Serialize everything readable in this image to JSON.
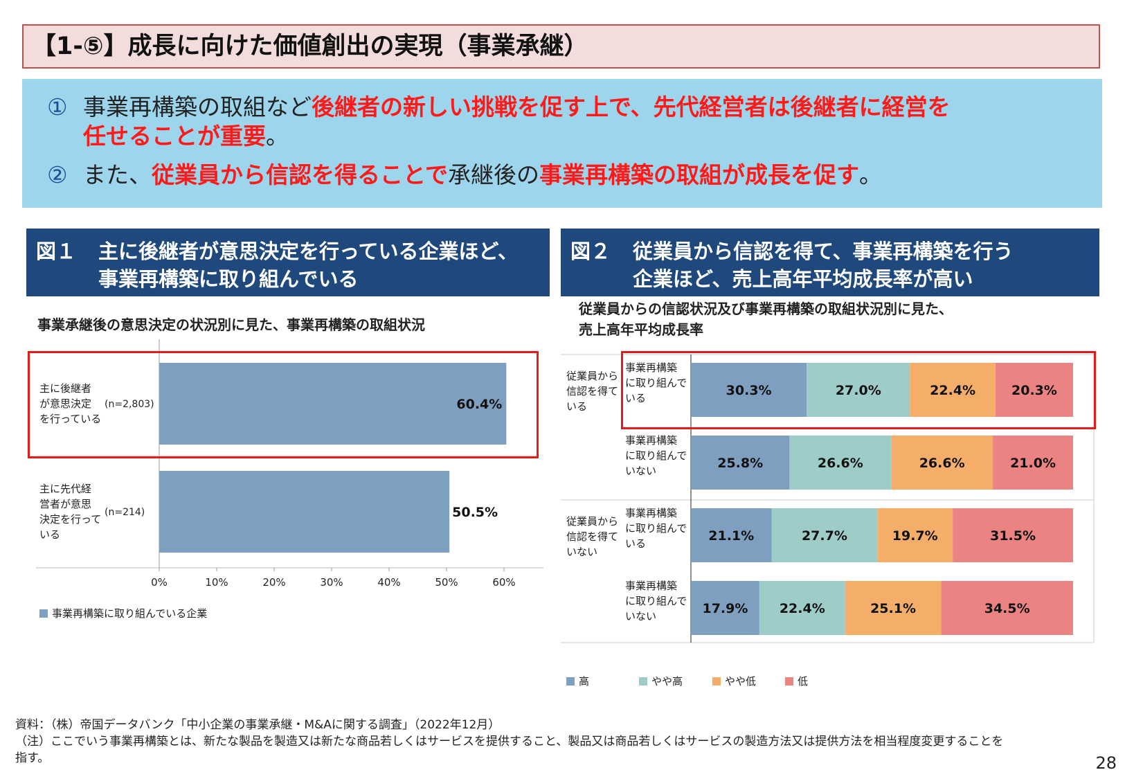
{
  "title": "【1-⑤】成長に向けた価値創出の実現（事業承継）",
  "summary": {
    "p1": {
      "num": "①",
      "a": "事業再構築の取組など",
      "b": "後継者の新しい挑戦を促す上で、先代経営者は後継者に経営を",
      "c": "任せることが重要",
      "d": "。"
    },
    "p2": {
      "num": "②",
      "a": "また、",
      "b": "従業員から信認を得ることで",
      "c": "承継後の",
      "d": "事業再構築の取組が成長を促す",
      "e": "。"
    }
  },
  "fig1": {
    "label": "図１",
    "heading_l1": "主に後継者が意思決定を行っている企業ほど、",
    "heading_l2": "事業再構築に取り組んでいる",
    "subtitle": "事業承継後の意思決定の状況別に見た、事業再構築の取組状況"
  },
  "fig2": {
    "label": "図２",
    "heading_l1": "従業員から信認を得て、事業再構築を行う",
    "heading_l2": "企業ほど、売上高年平均成長率が高い",
    "subtitle_l1": "従業員からの信認状況及び事業再構築の取組状況別に見た、",
    "subtitle_l2": "売上高年平均成長率"
  },
  "chart_data": [
    {
      "type": "bar",
      "orientation": "horizontal",
      "categories": [
        {
          "label": [
            "主に後継者",
            "が意思決定",
            "を行っている"
          ],
          "n": "(n=2,803)"
        },
        {
          "label": [
            "主に先代経",
            "営者が意思",
            "決定を行って",
            "いる"
          ],
          "n": "(n=214)"
        }
      ],
      "series": [
        {
          "name": "事業再構築に取り組んでいる企業",
          "values": [
            60.4,
            50.5
          ],
          "color": "#7f9fc0"
        }
      ],
      "value_labels": [
        "60.4%",
        "50.5%"
      ],
      "xlim": [
        0,
        60
      ],
      "xticks": [
        "0%",
        "10%",
        "20%",
        "30%",
        "40%",
        "50%",
        "60%"
      ],
      "legend_position": "bottom-left"
    },
    {
      "type": "bar",
      "orientation": "horizontal",
      "stacked": true,
      "groups": [
        {
          "label": [
            "従業員から",
            "信認を得て",
            "いる"
          ]
        },
        {
          "label": [
            "従業員から",
            "信認を得て",
            "いない"
          ]
        }
      ],
      "rows": [
        {
          "group": 0,
          "label": [
            "事業再構築",
            "に取り組んで",
            "いる"
          ]
        },
        {
          "group": 0,
          "label": [
            "事業再構築",
            "に取り組んで",
            "いない"
          ]
        },
        {
          "group": 1,
          "label": [
            "事業再構築",
            "に取り組んで",
            "いる"
          ]
        },
        {
          "group": 1,
          "label": [
            "事業再構築",
            "に取り組んで",
            "いない"
          ]
        }
      ],
      "series": [
        {
          "name": "高",
          "color": "#7f9fc0",
          "values": [
            30.3,
            25.8,
            21.1,
            17.9
          ],
          "labels": [
            "30.3%",
            "25.8%",
            "21.1%",
            "17.9%"
          ]
        },
        {
          "name": "やや高",
          "color": "#9ecdc9",
          "values": [
            27.0,
            26.6,
            27.7,
            22.4
          ],
          "labels": [
            "27.0%",
            "26.6%",
            "27.7%",
            "22.4%"
          ]
        },
        {
          "name": "やや低",
          "color": "#f4ae6a",
          "values": [
            22.4,
            26.6,
            19.7,
            25.1
          ],
          "labels": [
            "22.4%",
            "26.6%",
            "19.7%",
            "25.1%"
          ]
        },
        {
          "name": "低",
          "color": "#ec8383",
          "values": [
            20.3,
            21.0,
            31.5,
            34.5
          ],
          "labels": [
            "20.3%",
            "21.0%",
            "31.5%",
            "34.5%"
          ]
        }
      ],
      "legend_position": "bottom"
    }
  ],
  "notes": {
    "source": "資料：（株）帝国データバンク「中小企業の事業承継・M&Aに関する調査」（2022年12月）",
    "note_l1": "（注）ここでいう事業再構築とは、新たな製品を製造又は新たな商品若しくはサービスを提供すること、製品又は商品若しくはサービスの製造方法又は提供方法を相当程度変更することを",
    "note_l2": "指す。"
  },
  "page_number": "28"
}
